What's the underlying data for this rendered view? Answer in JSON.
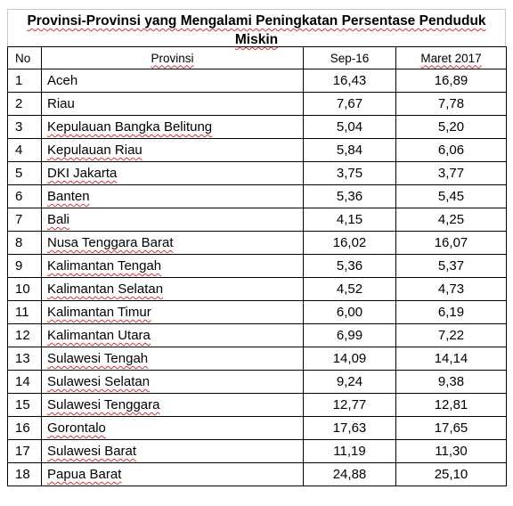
{
  "title": {
    "line1": "Provinsi-Provinsi yang Mengalami Peningkatan Persentase Penduduk",
    "line2": "Miskin"
  },
  "table": {
    "headers": [
      "No",
      "Provinsi",
      "Sep-16",
      "Maret 2017"
    ],
    "rows": [
      {
        "no": "1",
        "provinsi": "Aceh",
        "sep16": "16,43",
        "maret2017": "16,89"
      },
      {
        "no": "2",
        "provinsi": "Riau",
        "sep16": "7,67",
        "maret2017": "7,78"
      },
      {
        "no": "3",
        "provinsi": "Kepulauan Bangka Belitung",
        "sep16": "5,04",
        "maret2017": "5,20"
      },
      {
        "no": "4",
        "provinsi": "Kepulauan Riau",
        "sep16": "5,84",
        "maret2017": "6,06"
      },
      {
        "no": "5",
        "provinsi": "DKI Jakarta",
        "sep16": "3,75",
        "maret2017": "3,77"
      },
      {
        "no": "6",
        "provinsi": "Banten",
        "sep16": "5,36",
        "maret2017": "5,45"
      },
      {
        "no": "7",
        "provinsi": "Bali",
        "sep16": "4,15",
        "maret2017": "4,25"
      },
      {
        "no": "8",
        "provinsi": "Nusa Tenggara Barat",
        "sep16": "16,02",
        "maret2017": "16,07"
      },
      {
        "no": "9",
        "provinsi": "Kalimantan Tengah",
        "sep16": "5,36",
        "maret2017": "5,37"
      },
      {
        "no": "10",
        "provinsi": "Kalimantan Selatan",
        "sep16": "4,52",
        "maret2017": "4,73"
      },
      {
        "no": "11",
        "provinsi": "Kalimantan Timur",
        "sep16": "6,00",
        "maret2017": "6,19"
      },
      {
        "no": "12",
        "provinsi": "Kalimantan Utara",
        "sep16": "6,99",
        "maret2017": "7,22"
      },
      {
        "no": "13",
        "provinsi": "Sulawesi Tengah",
        "sep16": "14,09",
        "maret2017": "14,14"
      },
      {
        "no": "14",
        "provinsi": "Sulawesi Selatan",
        "sep16": "9,24",
        "maret2017": "9,38"
      },
      {
        "no": "15",
        "provinsi": "Sulawesi Tenggara",
        "sep16": "12,77",
        "maret2017": "12,81"
      },
      {
        "no": "16",
        "provinsi": "Gorontalo",
        "sep16": "17,63",
        "maret2017": "17,65"
      },
      {
        "no": "17",
        "provinsi": "Sulawesi Barat",
        "sep16": "11,19",
        "maret2017": "11,30"
      },
      {
        "no": "18",
        "provinsi": "Papua Barat",
        "sep16": "24,88",
        "maret2017": "25,10"
      }
    ]
  }
}
